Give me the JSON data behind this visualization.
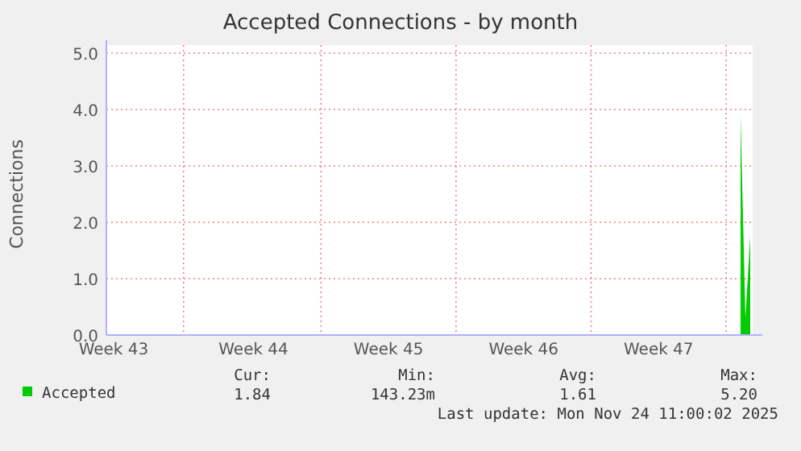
{
  "chart_data": {
    "type": "area",
    "title": "Accepted Connections - by month",
    "ylabel": "Connections",
    "categories": [
      null,
      "Week 43",
      null,
      null,
      null,
      null,
      null,
      null,
      null,
      null,
      null,
      null,
      null,
      null,
      null,
      null,
      null,
      null,
      null,
      null,
      null,
      null,
      null,
      null,
      null,
      null,
      null,
      null,
      null,
      null,
      "Week 44",
      null,
      null,
      null,
      null,
      null,
      null,
      null,
      null,
      null,
      null,
      null,
      null,
      null,
      null,
      null,
      null,
      null,
      null,
      null,
      null,
      null,
      null,
      null,
      null,
      null,
      null,
      null,
      "Week 45",
      null,
      null,
      null,
      null,
      null,
      null,
      null,
      null,
      null,
      null,
      null,
      null,
      null,
      null,
      null,
      null,
      null,
      null,
      null,
      null,
      null,
      null,
      null,
      null,
      null,
      null,
      null,
      "Week 46",
      null,
      null,
      null,
      null,
      null,
      null,
      null,
      null,
      null,
      null,
      null,
      null,
      null,
      null,
      null,
      null,
      null,
      null,
      null,
      null,
      null,
      null,
      null,
      null,
      null,
      null,
      null,
      "Week 47",
      null,
      null,
      null,
      null,
      null,
      null,
      null,
      null,
      null,
      null,
      null,
      null,
      null,
      null,
      null,
      null,
      null,
      null,
      null
    ],
    "series": [
      {
        "name": "Accepted",
        "color": "#00cc00",
        "values": [
          null,
          null,
          null,
          null,
          null,
          null,
          null,
          null,
          null,
          null,
          null,
          null,
          null,
          null,
          null,
          null,
          null,
          null,
          null,
          null,
          null,
          null,
          null,
          null,
          null,
          null,
          null,
          null,
          null,
          null,
          null,
          null,
          null,
          null,
          null,
          null,
          null,
          null,
          null,
          null,
          null,
          null,
          null,
          null,
          null,
          null,
          null,
          null,
          null,
          null,
          null,
          null,
          null,
          null,
          null,
          null,
          null,
          null,
          null,
          null,
          null,
          null,
          null,
          null,
          null,
          null,
          null,
          null,
          null,
          null,
          null,
          null,
          null,
          null,
          null,
          null,
          null,
          null,
          null,
          null,
          null,
          null,
          null,
          null,
          null,
          null,
          null,
          null,
          null,
          null,
          null,
          null,
          null,
          null,
          null,
          null,
          null,
          null,
          null,
          null,
          null,
          null,
          null,
          null,
          null,
          null,
          null,
          null,
          null,
          null,
          null,
          null,
          null,
          null,
          null,
          null,
          null,
          null,
          null,
          null,
          null,
          null,
          null,
          null,
          null,
          null,
          null,
          null,
          null,
          null,
          null,
          3.9,
          0.3,
          1.75
        ]
      }
    ],
    "ylim": [
      0,
      5
    ],
    "yticks": [
      {
        "value": 0,
        "label": "0.0"
      },
      {
        "value": 1,
        "label": "1.0"
      },
      {
        "value": 2,
        "label": "2.0"
      },
      {
        "value": 3,
        "label": "3.0"
      },
      {
        "value": 4,
        "label": "4.0"
      },
      {
        "value": 5,
        "label": "5.0"
      }
    ],
    "grid": true,
    "legend": "bottom left",
    "annotations": [
      "Cur:",
      "Min:",
      "Avg:",
      "Max:",
      "1.84",
      "143.23m",
      "1.61",
      "5.20",
      "Last update: Mon Nov 24 11:00:02 2025"
    ]
  }
}
